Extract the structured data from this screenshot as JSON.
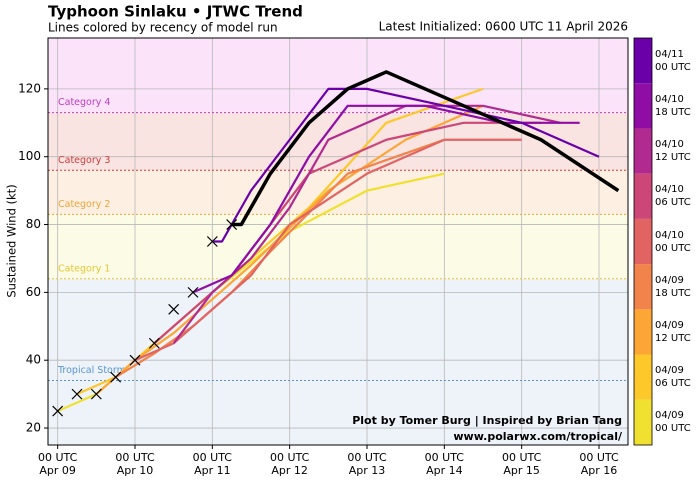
{
  "chart_data": {
    "type": "line",
    "title": "Typhoon Sinlaku • JTWC Trend",
    "subtitle": "Lines colored by recency of model run",
    "initialized": "Latest Initialized: 0600 UTC 11 April 2026",
    "ylabel": "Sustained Wind (kt)",
    "credit": [
      "Plot by Tomer Burg | Inspired by Brian Tang",
      "www.polarwx.com/tropical/"
    ],
    "xlim": [
      -3,
      177
    ],
    "ylim": [
      15,
      135
    ],
    "yticks": [
      20,
      40,
      60,
      80,
      100,
      120
    ],
    "xticks": [
      {
        "value": 0,
        "label": "00 UTC\nApr 09"
      },
      {
        "value": 24,
        "label": "00 UTC\nApr 10"
      },
      {
        "value": 48,
        "label": "00 UTC\nApr 11"
      },
      {
        "value": 72,
        "label": "00 UTC\nApr 12"
      },
      {
        "value": 96,
        "label": "00 UTC\nApr 13"
      },
      {
        "value": 120,
        "label": "00 UTC\nApr 14"
      },
      {
        "value": 144,
        "label": "00 UTC\nApr 15"
      },
      {
        "value": 168,
        "label": "00 UTC\nApr 16"
      }
    ],
    "grid": true,
    "bands": [
      {
        "label": "Tropical Storm",
        "value": 34,
        "fill": "#edf3f9",
        "color": "#5b95d0"
      },
      {
        "label": "Category 1",
        "value": 64,
        "fill": "#fcfbe6",
        "color": "#e3c832"
      },
      {
        "label": "Category 2",
        "value": 83,
        "fill": "#fdf0e2",
        "color": "#eea53a"
      },
      {
        "label": "Category 3",
        "value": 96,
        "fill": "#f9e4e2",
        "color": "#d23a3a"
      },
      {
        "label": "Category 4",
        "value": 113,
        "fill": "#fbe3fa",
        "color": "#c03cc0"
      }
    ],
    "series": [
      {
        "name": "04/09\n00 UTC",
        "color": "#f0e030",
        "x": [
          0,
          12,
          24,
          36,
          48,
          72,
          96,
          120
        ],
        "values": [
          25,
          30,
          40,
          50,
          60,
          78,
          90,
          95
        ]
      },
      {
        "name": "04/09\n06 UTC",
        "color": "#fcc82a",
        "x": [
          6,
          18,
          30,
          42,
          54,
          78,
          102,
          132
        ],
        "values": [
          30,
          35,
          45,
          55,
          65,
          85,
          110,
          120
        ]
      },
      {
        "name": "04/09\n12 UTC",
        "color": "#fca636",
        "x": [
          12,
          24,
          36,
          48,
          60,
          84,
          108,
          132
        ],
        "values": [
          30,
          40,
          48,
          58,
          68,
          90,
          105,
          115
        ]
      },
      {
        "name": "04/09\n18 UTC",
        "color": "#f1834b",
        "x": [
          18,
          30,
          42,
          54,
          66,
          90,
          120
        ],
        "values": [
          35,
          42,
          50,
          60,
          72,
          95,
          105
        ]
      },
      {
        "name": "04/10\n00 UTC",
        "color": "#e16462",
        "x": [
          24,
          36,
          48,
          60,
          72,
          96,
          120,
          144
        ],
        "values": [
          40,
          45,
          55,
          65,
          80,
          95,
          105,
          105
        ]
      },
      {
        "name": "04/10\n06 UTC",
        "color": "#cc4778",
        "x": [
          30,
          42,
          54,
          66,
          78,
          102,
          126,
          150
        ],
        "values": [
          45,
          55,
          65,
          80,
          95,
          105,
          110,
          110
        ]
      },
      {
        "name": "04/10\n12 UTC",
        "color": "#b12a90",
        "x": [
          36,
          48,
          60,
          72,
          84,
          108,
          132,
          156
        ],
        "values": [
          45,
          60,
          70,
          85,
          105,
          115,
          115,
          110
        ]
      },
      {
        "name": "04/10\n18 UTC",
        "color": "#8f0da4",
        "x": [
          42,
          54,
          66,
          78,
          90,
          114,
          138,
          162
        ],
        "values": [
          60,
          65,
          80,
          100,
          115,
          115,
          110,
          110
        ]
      },
      {
        "name": "04/11\n00 UTC",
        "color": "#6a00a8",
        "x": [
          48,
          51,
          60,
          72,
          84,
          96,
          120,
          144,
          168
        ],
        "values": [
          75,
          75,
          90,
          105,
          120,
          120,
          115,
          110,
          100
        ]
      }
    ],
    "jtwc": {
      "color": "#000000",
      "x": [
        54,
        57,
        66,
        78,
        90,
        102,
        126,
        150,
        174
      ],
      "values": [
        80,
        80,
        95,
        110,
        120,
        125,
        115,
        105,
        90
      ]
    },
    "best_track": {
      "color": "#000000",
      "x": [
        0,
        6,
        12,
        18,
        24,
        30,
        36,
        42,
        48,
        54
      ],
      "values": [
        25,
        30,
        30,
        35,
        40,
        45,
        55,
        60,
        75,
        80
      ]
    }
  }
}
